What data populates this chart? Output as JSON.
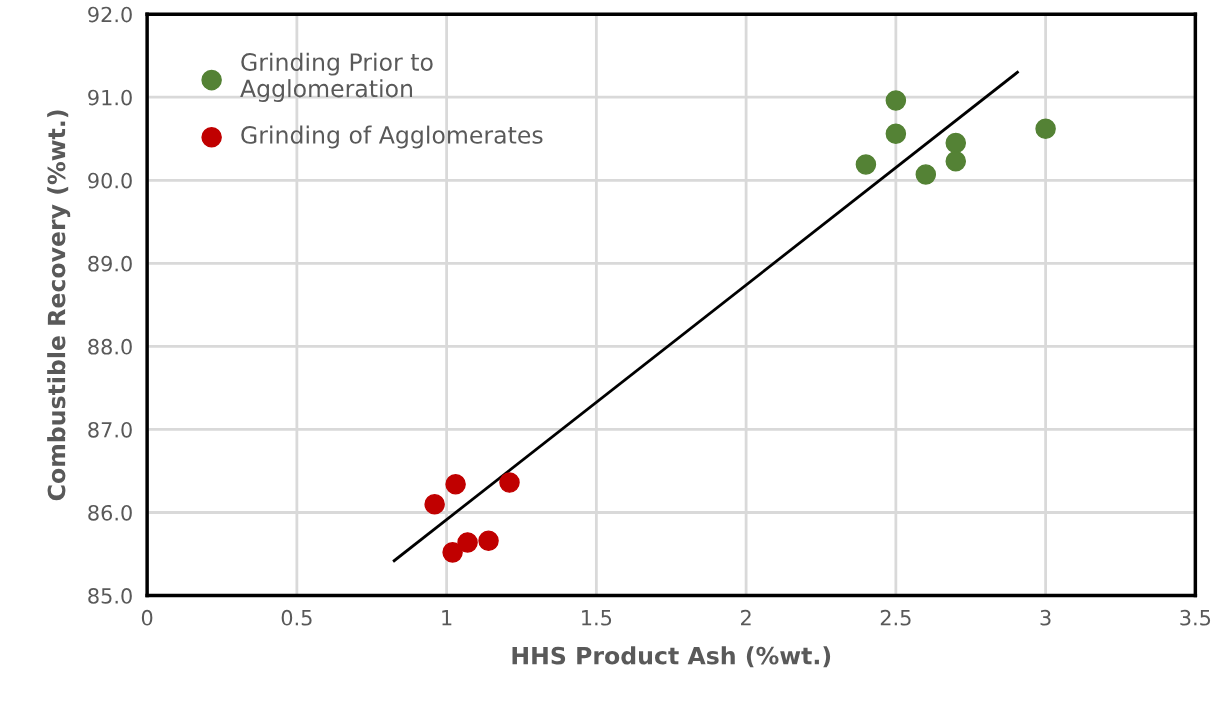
{
  "chart_data": {
    "type": "scatter",
    "xlabel": "HHS Product Ash (%wt.)",
    "ylabel": "Combustible Recovery (%wt.)",
    "series": [
      {
        "name": "Grinding Prior to\nAgglomeration",
        "color": "#548235",
        "x": [
          2.4,
          2.5,
          2.5,
          2.6,
          2.7,
          2.7,
          3.0
        ],
        "values": [
          90.19,
          90.96,
          90.56,
          90.07,
          90.45,
          90.23,
          90.62
        ]
      },
      {
        "name": "Grinding of Agglomerates",
        "color": "#c00000",
        "x": [
          0.96,
          1.03,
          1.21,
          1.02,
          1.07,
          1.14
        ],
        "values": [
          86.1,
          86.34,
          86.36,
          85.52,
          85.64,
          85.66
        ]
      },
      {
        "type": "line",
        "color": "#000000",
        "marker": "none",
        "x": [
          0.825,
          2.906
        ],
        "values": [
          85.42,
          91.3
        ]
      }
    ],
    "xlim": [
      0,
      3.5
    ],
    "ylim": [
      85,
      92
    ],
    "xticks": [
      0,
      0.5,
      1,
      1.5,
      2,
      2.5,
      3,
      3.5
    ],
    "yticks": [
      {
        "value": 85,
        "label": "85.0"
      },
      {
        "value": 86,
        "label": "86.0"
      },
      {
        "value": 87,
        "label": "87.0"
      },
      {
        "value": 88,
        "label": "88.0"
      },
      {
        "value": 89,
        "label": "89.0"
      },
      {
        "value": 90,
        "label": "90.0"
      },
      {
        "value": 91,
        "label": "91.0"
      },
      {
        "value": 92,
        "label": "92.0"
      }
    ],
    "grid": true,
    "legend": "top left",
    "marker": "circle"
  }
}
